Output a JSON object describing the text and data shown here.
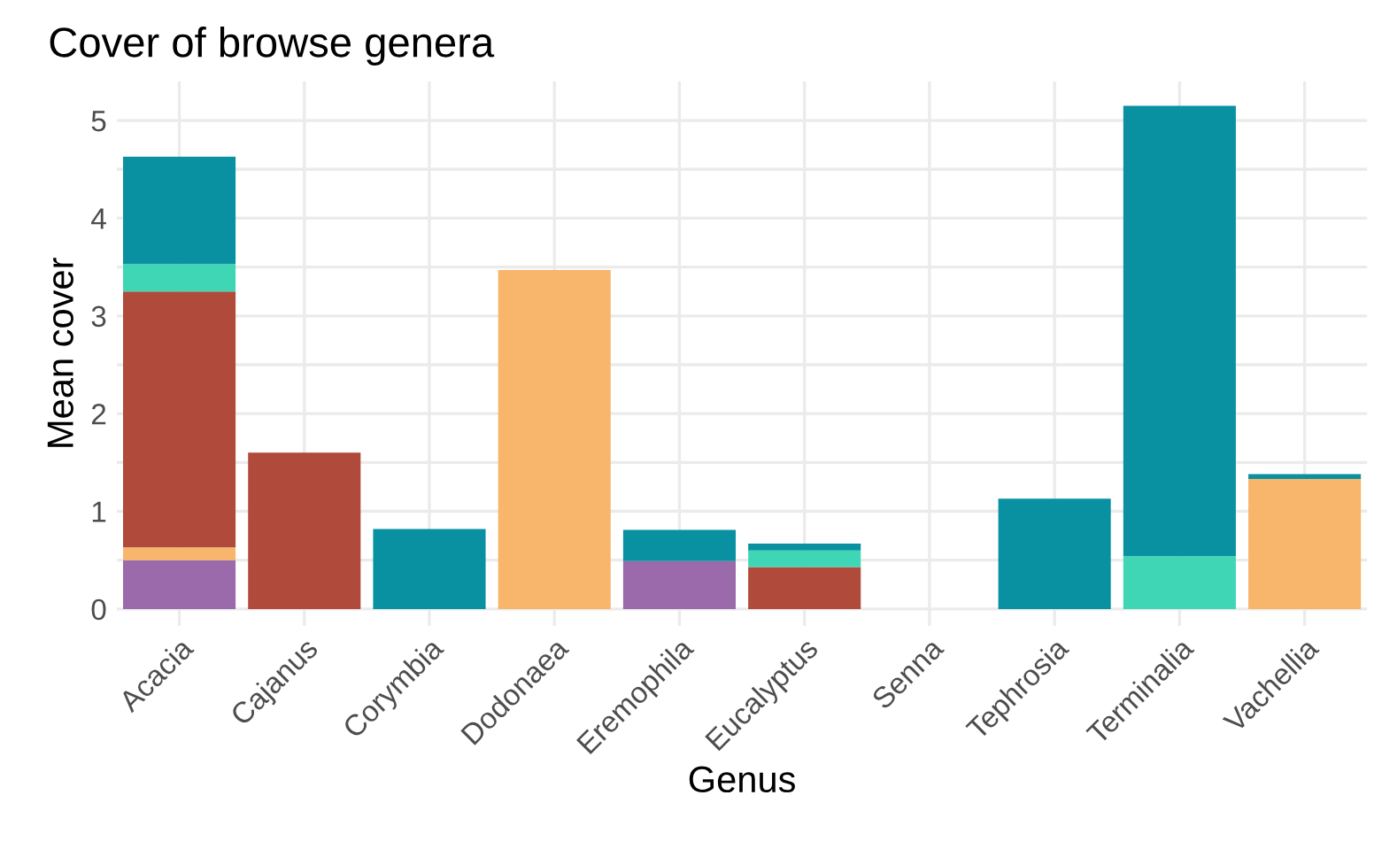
{
  "chart_data": {
    "type": "bar",
    "title": "Cover of browse genera",
    "xlabel": "Genus",
    "ylabel": "Mean cover",
    "categories": [
      "Acacia",
      "Cajanus",
      "Corymbia",
      "Dodonaea",
      "Eremophila",
      "Eucalyptus",
      "Senna",
      "Tephrosia",
      "Terminalia",
      "Vachellia"
    ],
    "stacked": true,
    "series": [
      {
        "color": "#9a6aab",
        "values": [
          0.5,
          null,
          null,
          null,
          0.49,
          null,
          null,
          null,
          null,
          null
        ]
      },
      {
        "color": "#f8b56c",
        "values": [
          0.13,
          null,
          null,
          3.47,
          null,
          null,
          null,
          null,
          null,
          1.33
        ]
      },
      {
        "color": "#b04a3a",
        "values": [
          2.62,
          1.6,
          null,
          null,
          null,
          0.43,
          null,
          null,
          null,
          null
        ]
      },
      {
        "color": "#3fd6b6",
        "values": [
          0.28,
          null,
          null,
          null,
          null,
          0.17,
          null,
          null,
          0.54,
          null
        ]
      },
      {
        "color": "#0a91a1",
        "values": [
          1.1,
          null,
          0.82,
          null,
          0.32,
          0.07,
          null,
          1.13,
          4.61,
          0.05
        ]
      }
    ],
    "ylim": [
      -0.17,
      5.4
    ],
    "yticks": [
      0,
      {
        "value": 0.5,
        "label": null
      },
      1,
      {
        "value": 1.5,
        "label": null
      },
      2,
      {
        "value": 2.5,
        "label": null
      },
      3,
      {
        "value": 3.5,
        "label": null
      },
      4,
      {
        "value": 4.5,
        "label": null
      },
      5
    ],
    "grid": true,
    "legend": false
  }
}
